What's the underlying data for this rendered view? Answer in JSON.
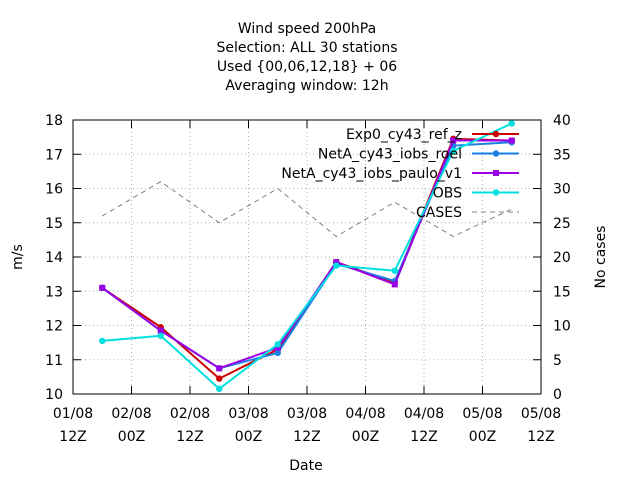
{
  "chart_data": {
    "type": "line",
    "title_lines": [
      "Wind speed 200hPa",
      "Selection: ALL      30 stations",
      "Used {00,06,12,18} + 06",
      "Averaging window: 12h"
    ],
    "xlabel": "Date",
    "ylabel": "m/s",
    "y2label": "No cases",
    "ylim": [
      10,
      18
    ],
    "y2lim": [
      0,
      40
    ],
    "yticks": [
      "10",
      "11",
      "12",
      "13",
      "14",
      "15",
      "16",
      "17",
      "18"
    ],
    "y2ticks": [
      "0",
      "5",
      "10",
      "15",
      "20",
      "25",
      "30",
      "35",
      "40"
    ],
    "xticks": [
      {
        "date": "01/08",
        "hour": "12Z"
      },
      {
        "date": "02/08",
        "hour": "00Z"
      },
      {
        "date": "02/08",
        "hour": "12Z"
      },
      {
        "date": "03/08",
        "hour": "00Z"
      },
      {
        "date": "03/08",
        "hour": "12Z"
      },
      {
        "date": "04/08",
        "hour": "00Z"
      },
      {
        "date": "04/08",
        "hour": "12Z"
      },
      {
        "date": "05/08",
        "hour": "00Z"
      },
      {
        "date": "05/08",
        "hour": "12Z"
      }
    ],
    "x": [
      0.5,
      1.5,
      2.5,
      3.5,
      4.5,
      5.5,
      6.5,
      7.5
    ],
    "grid": true,
    "legend_position": "top-right",
    "series": [
      {
        "name": "Exp0_cy43_ref_z",
        "color": "#cc0000",
        "marker": "circle",
        "values": [
          13.1,
          11.95,
          10.45,
          11.3,
          13.85,
          13.25,
          17.45,
          17.4
        ]
      },
      {
        "name": "NetA_cy43_iobs_roel",
        "color": "#1a7fe6",
        "marker": "circle",
        "values": [
          13.1,
          11.85,
          10.75,
          11.2,
          13.8,
          13.3,
          17.25,
          17.35
        ]
      },
      {
        "name": "NetA_cy43_iobs_paulo_v1",
        "color": "#9900e6",
        "marker": "square",
        "values": [
          13.1,
          11.85,
          10.75,
          11.35,
          13.85,
          13.2,
          17.4,
          17.4
        ]
      },
      {
        "name": "OBS",
        "color": "#00e0e0",
        "marker": "circle",
        "values": [
          11.55,
          11.7,
          10.15,
          11.45,
          13.75,
          13.6,
          17.1,
          17.9
        ]
      },
      {
        "name": "CASES",
        "color": "#808080",
        "marker": "none",
        "dashed": true,
        "axis": "y2",
        "values": [
          26,
          31,
          25,
          30,
          23,
          28,
          23,
          27
        ]
      }
    ]
  }
}
